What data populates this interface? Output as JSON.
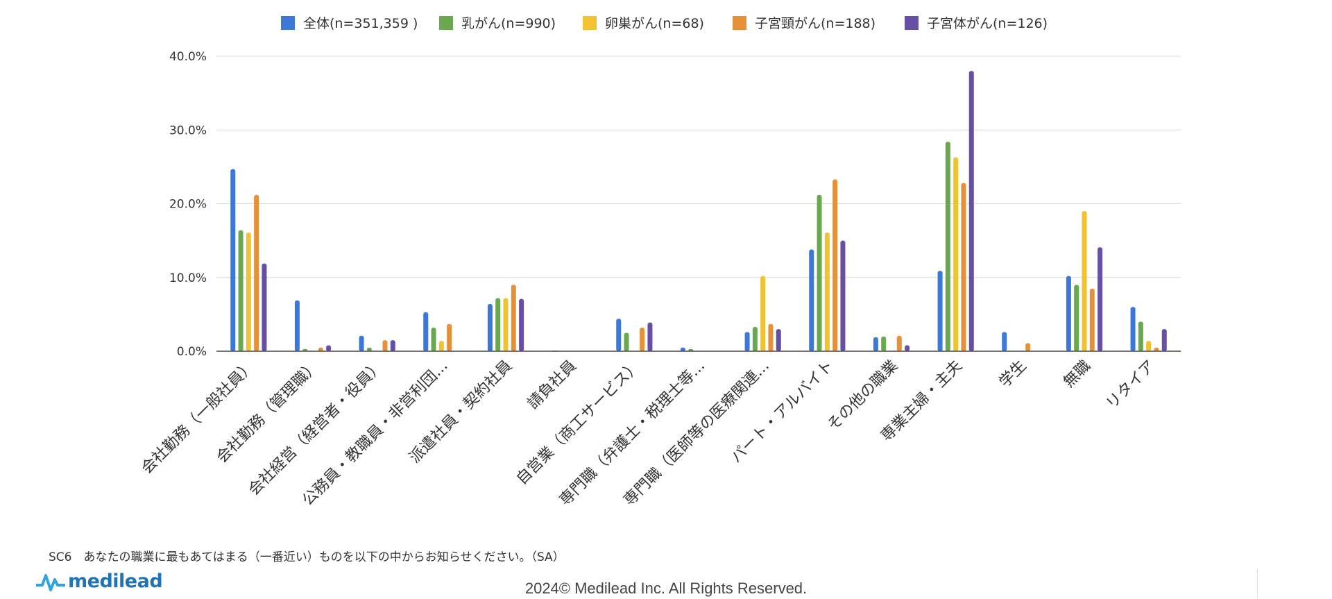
{
  "chart_data": {
    "type": "bar",
    "categories": [
      "会社勤務（一般社員）",
      "会社勤務（管理職）",
      "会社経営（経営者・役員）",
      "公務員・教職員・非営利団...",
      "派遣社員・契約社員",
      "請負社員",
      "自営業（商工サービス）",
      "専門職（弁護士・税理士等...",
      "専門職（医師等の医療関連...",
      "パート・アルバイト",
      "その他の職業",
      "専業主婦・主夫",
      "学生",
      "無職",
      "リタイア"
    ],
    "series": [
      {
        "name": "全体(n=351,359 )",
        "color": "#3c78d8",
        "values": [
          24.7,
          6.9,
          2.1,
          5.3,
          6.4,
          0.1,
          4.4,
          0.5,
          2.6,
          13.8,
          1.9,
          10.9,
          2.6,
          10.2,
          6.0
        ]
      },
      {
        "name": "乳がん(n=990)",
        "color": "#6aa84f",
        "values": [
          16.4,
          0.3,
          0.5,
          3.2,
          7.2,
          0,
          2.5,
          0.3,
          3.3,
          21.2,
          2.0,
          28.4,
          0,
          9.0,
          4.0
        ]
      },
      {
        "name": "卵巣がん(n=68)",
        "color": "#f1c232",
        "values": [
          16.1,
          0,
          0,
          1.4,
          7.2,
          0,
          0,
          0,
          10.2,
          16.1,
          0,
          26.3,
          0,
          19.0,
          1.4
        ]
      },
      {
        "name": "子宮頸がん(n=188)",
        "color": "#e69138",
        "values": [
          21.2,
          0.5,
          1.5,
          3.7,
          9.0,
          0,
          3.2,
          0,
          3.7,
          23.3,
          2.1,
          22.8,
          1.1,
          8.5,
          0.5
        ]
      },
      {
        "name": "子宮体がん(n=126)",
        "color": "#674ea7",
        "values": [
          11.9,
          0.8,
          1.5,
          0,
          7.1,
          0,
          3.9,
          0,
          3.0,
          15.0,
          0.8,
          38.0,
          0,
          14.1,
          3.0
        ]
      }
    ],
    "y_ticks": [
      "0.0%",
      "10.0%",
      "20.0%",
      "30.0%",
      "40.0%"
    ],
    "ylim": [
      0,
      40
    ],
    "grid": true,
    "legend_position": "top"
  },
  "footer": {
    "question": "SC6　あなたの職業に最もあてはまる（一番近い）ものを以下の中からお知らせください。（SA）",
    "logo_text": "medilead",
    "copyright": "2024© Medilead Inc. All Rights Reserved."
  }
}
